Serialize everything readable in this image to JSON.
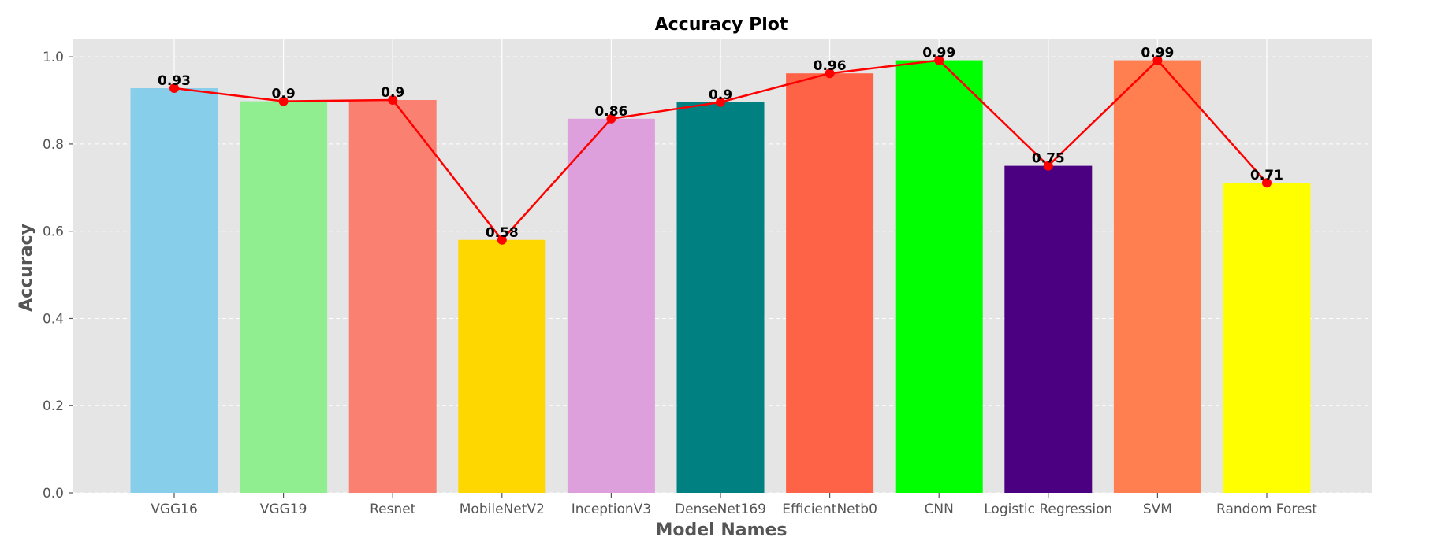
{
  "chart_data": {
    "type": "bar",
    "title": "Accuracy Plot",
    "xlabel": "Model Names",
    "ylabel": "Accuracy",
    "categories": [
      "VGG16",
      "VGG19",
      "Resnet",
      "MobileNetV2",
      "InceptionV3",
      "DenseNet169",
      "EfficientNetb0",
      "CNN",
      "Logistic Regression",
      "SVM",
      "Random Forest"
    ],
    "values": [
      0.93,
      0.9,
      0.9,
      0.58,
      0.86,
      0.9,
      0.96,
      0.99,
      0.75,
      0.99,
      0.71
    ],
    "plotted_values": [
      0.928,
      0.898,
      0.901,
      0.58,
      0.858,
      0.896,
      0.962,
      0.992,
      0.75,
      0.992,
      0.711
    ],
    "data_labels": [
      "0.93",
      "0.9",
      "0.9",
      "0.58",
      "0.86",
      "0.9",
      "0.96",
      "0.99",
      "0.75",
      "0.99",
      "0.71"
    ],
    "bar_colors": [
      "#87CEEB",
      "#90EE90",
      "#FA8072",
      "#FFD700",
      "#DDA0DD",
      "#008080",
      "#FF6347",
      "#00FF00",
      "#4B0082",
      "#FF7F50",
      "#FFFF00"
    ],
    "line": {
      "color": "#FF0000",
      "marker": "circle"
    },
    "ylim": [
      0,
      1.04
    ],
    "yticks": [
      0.0,
      0.2,
      0.4,
      0.6,
      0.8,
      1.0
    ],
    "ytick_labels": [
      "0.0",
      "0.2",
      "0.4",
      "0.6",
      "0.8",
      "1.0"
    ],
    "grid": true,
    "style": {
      "plot_background": "#E5E5E5",
      "grid_color": "#FFFFFF"
    }
  }
}
